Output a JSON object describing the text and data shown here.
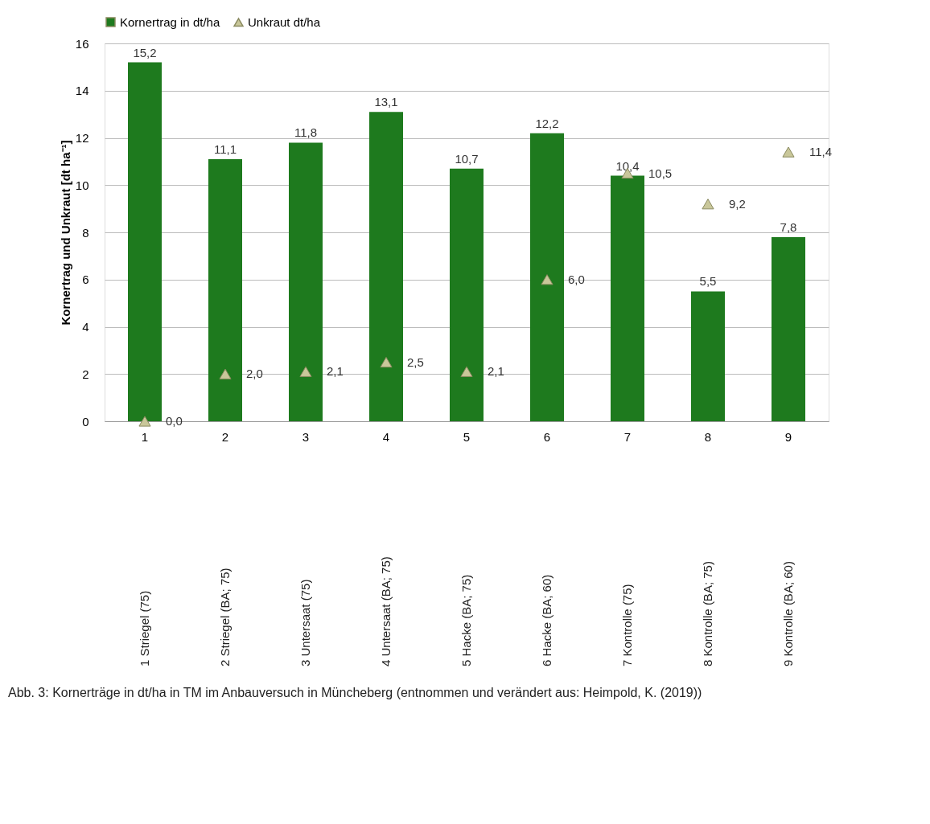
{
  "chart_data": {
    "type": "bar",
    "ylabel": "Kornertrag und Unkraut [dt ha⁻¹]",
    "categories": [
      "1",
      "2",
      "3",
      "4",
      "5",
      "6",
      "7",
      "8",
      "9"
    ],
    "series": [
      {
        "name": "Kornertrag in  dt/ha",
        "color": "#1e7a1e",
        "values": [
          15.2,
          11.1,
          11.8,
          13.1,
          10.7,
          12.2,
          10.4,
          5.5,
          7.8
        ],
        "value_labels": [
          "15,2",
          "11,1",
          "11,8",
          "13,1",
          "10,7",
          "12,2",
          "10,4",
          "5,5",
          "7,8"
        ]
      },
      {
        "name": "Unkraut dt/ha",
        "type": "scatter",
        "marker": "triangle",
        "color": "#c9c79a",
        "values": [
          0.0,
          2.0,
          2.1,
          2.5,
          2.1,
          6.0,
          10.5,
          9.2,
          11.4
        ],
        "value_labels": [
          "0,0",
          "2,0",
          "2,1",
          "2,5",
          "2,1",
          "6,0",
          "10,5",
          "9,2",
          "11,4"
        ]
      }
    ],
    "ylim": [
      0,
      16
    ],
    "yticks": [
      0,
      2,
      4,
      6,
      8,
      10,
      12,
      14,
      16
    ],
    "grid": "y",
    "legend": "top",
    "annotations": [
      "1 Striegel (75)",
      "2 Striegel (BA; 75)",
      "3 Untersaat (75)",
      "4 Untersaat (BA; 75)",
      "5 Hacke (BA; 75)",
      "6 Hacke (BA; 60)",
      "7 Kontrolle (75)",
      "8 Kontrolle (BA; 75)",
      "9 Kontrolle (BA; 60)",
      "Abb. 3: Kornerträge in dt/ha in TM im Anbauversuch in Müncheberg (entnommen und verändert aus: Heimpold, K. (2019))"
    ]
  }
}
